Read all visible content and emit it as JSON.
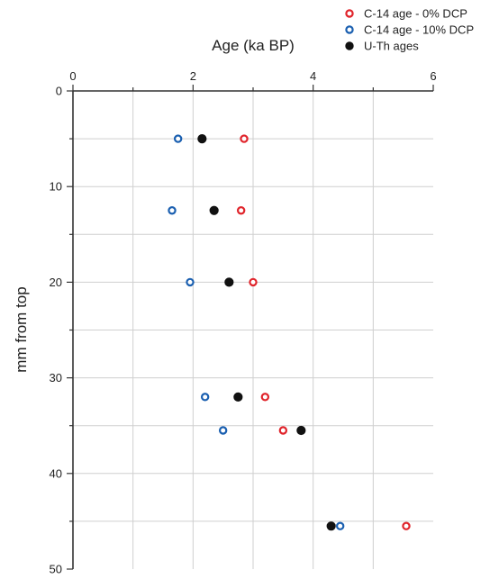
{
  "chart_data": {
    "type": "scatter",
    "title": "",
    "xlabel": "Age (ka BP)",
    "ylabel": "mm from top",
    "xlim": [
      0,
      6
    ],
    "ylim": [
      0,
      50
    ],
    "x_axis_position": "top",
    "y_axis_inverted": true,
    "grid": true,
    "x_ticks": [
      "0",
      "2",
      "4",
      "6"
    ],
    "y_ticks": [
      "0",
      "10",
      "20",
      "30",
      "40",
      "50"
    ],
    "legend_position": "top-right",
    "series": [
      {
        "name": "C-14 age - 0% DCP",
        "marker": "open-circle",
        "color": "#e0242b",
        "points": [
          [
            2.85,
            5
          ],
          [
            2.8,
            12.5
          ],
          [
            3.0,
            20
          ],
          [
            3.2,
            32
          ],
          [
            3.5,
            35.5
          ],
          [
            5.55,
            45.5
          ]
        ]
      },
      {
        "name": "C-14 age - 10% DCP",
        "marker": "open-circle",
        "color": "#1a5fb0",
        "points": [
          [
            1.75,
            5
          ],
          [
            1.65,
            12.5
          ],
          [
            1.95,
            20
          ],
          [
            2.2,
            32
          ],
          [
            2.5,
            35.5
          ],
          [
            4.45,
            45.5
          ]
        ]
      },
      {
        "name": "U-Th ages",
        "marker": "filled-circle",
        "color": "#111111",
        "points": [
          [
            2.15,
            5
          ],
          [
            2.35,
            12.5
          ],
          [
            2.6,
            20
          ],
          [
            2.75,
            32
          ],
          [
            3.8,
            35.5
          ],
          [
            4.3,
            45.5
          ]
        ]
      }
    ]
  }
}
